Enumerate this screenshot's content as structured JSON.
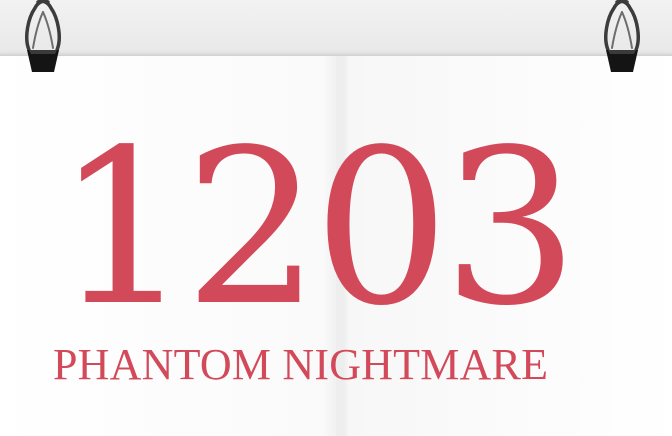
{
  "poster": {
    "number": "1203",
    "subtitle": "PHANTOM NIGHTMARE",
    "text_color": "#d24a5a"
  },
  "clips": [
    {
      "icon": "binder-clip-icon"
    },
    {
      "icon": "binder-clip-icon"
    }
  ]
}
